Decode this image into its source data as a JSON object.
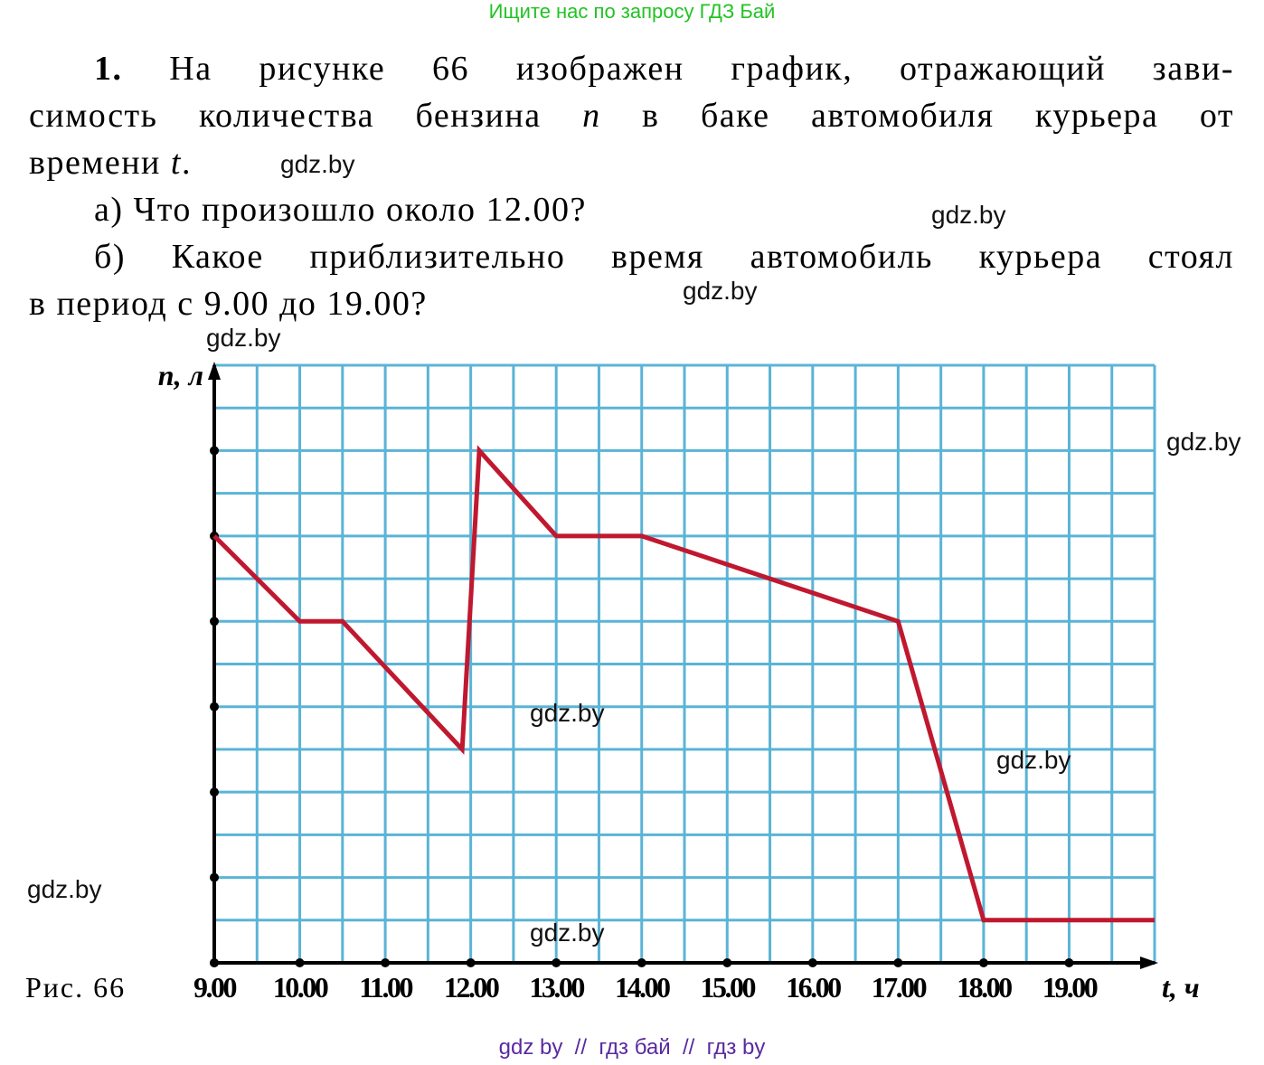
{
  "header": {
    "search_hint": "Ищите нас по запросу ГДЗ Бай"
  },
  "task": {
    "number": "1.",
    "lines": [
      [
        "На рисунке 66 изображен график, отражающий зави-"
      ],
      [
        "симость количества бензина ",
        "n",
        " в баке автомобиля курьера от"
      ],
      [
        "времени ",
        "t",
        "."
      ]
    ],
    "questions": [
      [
        "а) Что произошло около 12.00?"
      ],
      [
        "б) Какое приблизительно время автомобиль курьера стоял"
      ],
      [
        "в период с 9.00 до 19.00?"
      ]
    ]
  },
  "watermarks": [
    "gdz.by",
    "gdz.by",
    "gdz.by",
    "gdz.by",
    "gdz.by",
    "gdz.by",
    "gdz.by",
    "gdz.by",
    "gdz.by"
  ],
  "caption": "Рис. 66",
  "footer": "gdz by  //  гдз бай  //  гдз by",
  "chart_data": {
    "type": "line",
    "x_label": "t, ч",
    "y_label": "n, л",
    "x": [
      9,
      10,
      10.5,
      11.9,
      12.1,
      13,
      14,
      17,
      18,
      20
    ],
    "series": [
      {
        "color": "#c0182f",
        "values": [
          10,
          8,
          8,
          5,
          12,
          10,
          10,
          8,
          1,
          1
        ]
      }
    ],
    "xlim": [
      9,
      20
    ],
    "xticks": [
      {
        "value": 9,
        "label": "9.00"
      },
      {
        "value": 10,
        "label": "10.00"
      },
      {
        "value": 11,
        "label": "11.00"
      },
      {
        "value": 12,
        "label": "12.00"
      },
      {
        "value": 13,
        "label": "13.00"
      },
      {
        "value": 14,
        "label": "14.00"
      },
      {
        "value": 15,
        "label": "15.00"
      },
      {
        "value": 16,
        "label": "16.00"
      },
      {
        "value": 17,
        "label": "17.00"
      },
      {
        "value": 18,
        "label": "18.00"
      },
      {
        "value": 19,
        "label": "19.00"
      }
    ],
    "ylim": [
      0,
      14
    ],
    "yticks": [
      0,
      2,
      4,
      6,
      8,
      10,
      12
    ],
    "grid": true,
    "grid_color": "#5ab4d6"
  }
}
